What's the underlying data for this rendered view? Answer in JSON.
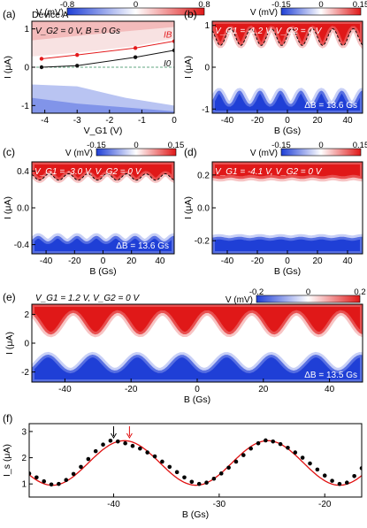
{
  "figure": {
    "panels": [
      "(a)",
      "(b)",
      "(c)",
      "(d)",
      "(e)",
      "(f)"
    ],
    "device": "Device A"
  },
  "colors": {
    "blue": "#1f3fd6",
    "white": "#ffffff",
    "red": "#e01818",
    "ib_line": "#e41a1c",
    "io_line": "#111111",
    "fit_line": "#e01010",
    "data_dots": "#000000",
    "zero_line": "#2e8b57"
  },
  "chart_data": [
    {
      "panel": "(a)",
      "type": "heatmap",
      "title": "V_G2 = 0 V, B = 0 Gs",
      "xlabel": "V_G1 (V)",
      "ylabel": "I (μA)",
      "xlim": [
        -4.4,
        0
      ],
      "ylim": [
        -1.2,
        1.2
      ],
      "xticks": [
        -4,
        -3,
        -2,
        -1,
        0
      ],
      "yticks": [
        -1,
        0,
        1
      ],
      "colorbar": {
        "label": "V (mV)",
        "ticks": [
          "-0.8",
          "0",
          "0.8"
        ],
        "range": [
          -0.8,
          0.8
        ]
      },
      "series": [
        {
          "name": "I_B",
          "x": [
            -4.1,
            -3.0,
            -1.2,
            0.0
          ],
          "values": [
            0.22,
            0.32,
            0.5,
            0.68
          ]
        },
        {
          "name": "I_0",
          "x": [
            -4.1,
            -3.0,
            -1.2,
            0.0
          ],
          "values": [
            0.0,
            0.04,
            0.26,
            0.44
          ]
        }
      ]
    },
    {
      "panel": "(b)",
      "type": "heatmap",
      "title": "V_G1 = -1.2 V, V_G2 = 0 V",
      "xlabel": "B (Gs)",
      "ylabel": "I (μA)",
      "xlim": [
        -50,
        50
      ],
      "ylim": [
        -1.1,
        1.1
      ],
      "xticks": [
        -40,
        -20,
        0,
        20,
        40
      ],
      "yticks": [
        -1,
        0,
        1
      ],
      "colorbar": {
        "label": "V (mV)",
        "ticks": [
          "-0.15",
          "0",
          "0.15"
        ],
        "range": [
          -0.15,
          0.15
        ]
      },
      "annotation": "ΔB = 13.6 Gs",
      "switching": {
        "period": 13.6,
        "mean": 0.72,
        "amplitude": 0.2,
        "neg_mean": -0.72,
        "neg_amplitude": 0.16
      }
    },
    {
      "panel": "(c)",
      "type": "heatmap",
      "title": "V_G1 = -3.0 V, V_G2 = 0 V",
      "xlabel": "B (Gs)",
      "ylabel": "I (μA)",
      "xlim": [
        -50,
        50
      ],
      "ylim": [
        -0.5,
        0.5
      ],
      "xticks": [
        -40,
        -20,
        0,
        20,
        40
      ],
      "yticks": [
        "-0.4",
        "0.0",
        "0.4"
      ],
      "colorbar": {
        "label": "V (mV)",
        "ticks": [
          "-0.15",
          "0",
          "0.15"
        ],
        "range": [
          -0.15,
          0.15
        ]
      },
      "annotation": "ΔB = 13.6 Gs",
      "switching": {
        "period": 13.6,
        "mean": 0.335,
        "amplitude": 0.035,
        "neg_mean": -0.335,
        "neg_amplitude": 0.03
      }
    },
    {
      "panel": "(d)",
      "type": "heatmap",
      "title": "V_G1 = -4.1 V, V_G2 = 0 V",
      "xlabel": "B (Gs)",
      "ylabel": "I (μA)",
      "xlim": [
        -50,
        50
      ],
      "ylim": [
        -0.28,
        0.28
      ],
      "xticks": [
        -40,
        -20,
        0,
        20,
        40
      ],
      "yticks": [
        "-0.2",
        "0.0",
        "0.2"
      ],
      "colorbar": {
        "label": "V (mV)",
        "ticks": [
          "-0.15",
          "0",
          "0.15"
        ],
        "range": [
          -0.15,
          0.15
        ]
      },
      "switching": {
        "period": 13.6,
        "mean": 0.18,
        "amplitude": 0.004,
        "neg_mean": -0.18,
        "neg_amplitude": 0.004
      }
    },
    {
      "panel": "(e)",
      "type": "heatmap",
      "title": "V_G1 = 1.2 V, V_G2 = 0 V",
      "xlabel": "B (Gs)",
      "ylabel": "I (μA)",
      "xlim": [
        -50,
        50
      ],
      "ylim": [
        -2.7,
        2.7
      ],
      "xticks": [
        -40,
        -20,
        0,
        20,
        40
      ],
      "yticks": [
        -2,
        0,
        2
      ],
      "colorbar": {
        "label": "V (mV)",
        "ticks": [
          "-0.2",
          "0",
          "0.2"
        ],
        "range": [
          -0.2,
          0.2
        ]
      },
      "annotation": "ΔB = 13.5 Gs",
      "switching": {
        "period": 13.5,
        "mean": 1.35,
        "amplitude": 0.75,
        "neg_mean": -1.35,
        "neg_amplitude": 0.55
      }
    },
    {
      "panel": "(f)",
      "type": "scatter",
      "xlabel": "B (Gs)",
      "ylabel": "I_s (μA)",
      "xlim": [
        -48,
        -16.5
      ],
      "ylim": [
        0.5,
        3.3
      ],
      "xticks": [
        -40,
        -30,
        -20
      ],
      "yticks": [
        1,
        2,
        3
      ],
      "fit": {
        "period": 13.6,
        "mean": 1.8,
        "amplitude": 0.85,
        "peak_at": -39.0
      },
      "arrows": [
        {
          "x": -40.0,
          "color": "black"
        },
        {
          "x": -38.5,
          "color": "red"
        }
      ],
      "x": [
        -48.0,
        -47.3,
        -46.6,
        -45.9,
        -45.2,
        -44.5,
        -43.8,
        -43.1,
        -42.4,
        -41.7,
        -41.0,
        -40.3,
        -39.6,
        -38.9,
        -38.2,
        -37.5,
        -36.8,
        -36.1,
        -35.4,
        -34.7,
        -34.0,
        -33.3,
        -32.6,
        -31.9,
        -31.2,
        -30.5,
        -29.8,
        -29.1,
        -28.4,
        -27.7,
        -27.0,
        -26.3,
        -25.6,
        -24.9,
        -24.2,
        -23.5,
        -22.8,
        -22.1,
        -21.4,
        -20.7,
        -20.0,
        -19.3,
        -18.6,
        -17.9,
        -17.2,
        -16.5
      ],
      "values": [
        1.4,
        1.25,
        1.1,
        0.98,
        1.0,
        1.15,
        1.38,
        1.65,
        1.95,
        2.25,
        2.5,
        2.65,
        2.62,
        2.55,
        2.45,
        2.35,
        2.2,
        2.05,
        1.85,
        1.65,
        1.45,
        1.25,
        1.08,
        1.0,
        1.05,
        1.2,
        1.4,
        1.62,
        1.85,
        2.1,
        2.35,
        2.55,
        2.66,
        2.62,
        2.52,
        2.38,
        2.2,
        2.0,
        1.78,
        1.55,
        1.32,
        1.12,
        1.0,
        1.05,
        1.3,
        1.6
      ]
    }
  ]
}
